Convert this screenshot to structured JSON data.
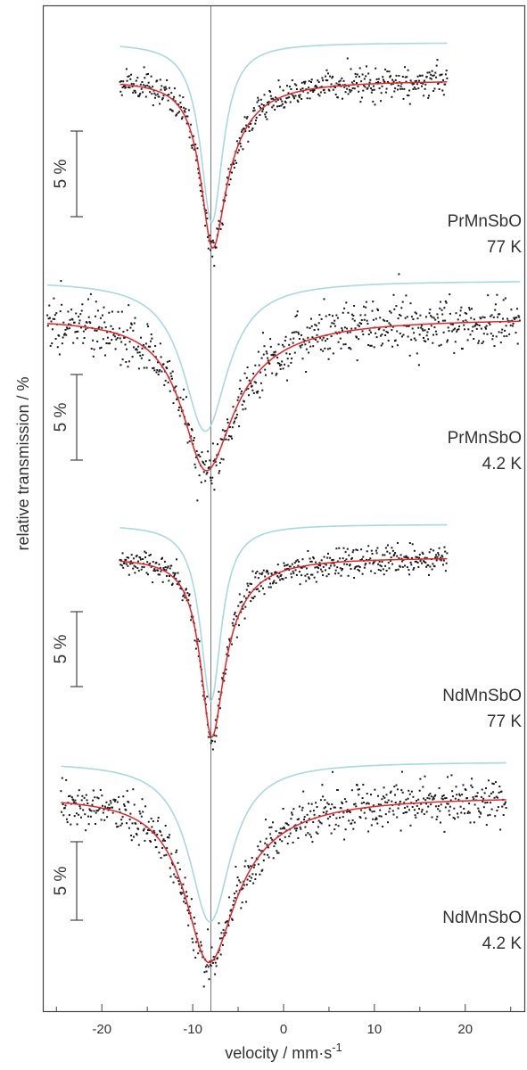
{
  "chart_data": {
    "type": "scatter",
    "xlabel": "velocity / mm·s",
    "xlabel_superscript": "-1",
    "ylabel": "relative transmission / %",
    "xlim": [
      -26.5,
      26.5
    ],
    "xticks": [
      -20,
      -10,
      0,
      10,
      20
    ],
    "xtick_labels": [
      "-20",
      "-10",
      "0",
      "10",
      "20"
    ],
    "reference_line_x": -8.0,
    "grid": false,
    "colors": {
      "data_points": "#1a1a1a",
      "fit": "#e8232a",
      "subspectrum": "#a9d8de",
      "frame": "#444444",
      "reference_line": "#777777"
    },
    "scale_bar_label": "5 %",
    "panels": [
      {
        "sample": "PrMnSbO",
        "temperature": "77 K",
        "x_range": [
          -18,
          18
        ],
        "fit": {
          "center": -7.8,
          "depth_percent": 9.8,
          "fwhm": 3.2,
          "asymmetry_tail": 0.35
        },
        "subspectrum": {
          "center": -7.9,
          "depth_percent": 10.5,
          "fwhm": 3.0,
          "offset_percent": 2.2
        },
        "noise_percent": 0.45
      },
      {
        "sample": "PrMnSbO",
        "temperature": "4.2 K",
        "x_range": [
          -26,
          26
        ],
        "fit": {
          "center": -8.5,
          "depth_percent": 8.9,
          "fwhm": 6.6,
          "asymmetry_tail": 0.25
        },
        "subspectrum": {
          "center": -8.6,
          "depth_percent": 8.8,
          "fwhm": 6.0,
          "offset_percent": 2.2
        },
        "noise_percent": 0.75
      },
      {
        "sample": "NdMnSbO",
        "temperature": "77 K",
        "x_range": [
          -18,
          18
        ],
        "fit": {
          "center": -7.9,
          "depth_percent": 12.0,
          "fwhm": 3.0,
          "asymmetry_tail": 0.3
        },
        "subspectrum": {
          "center": -8.0,
          "depth_percent": 11.8,
          "fwhm": 2.8,
          "offset_percent": 2.2
        },
        "noise_percent": 0.5
      },
      {
        "sample": "NdMnSbO",
        "temperature": "4.2 K",
        "x_range": [
          -24.5,
          24.5
        ],
        "fit": {
          "center": -8.2,
          "depth_percent": 10.6,
          "fwhm": 6.5,
          "asymmetry_tail": 0.25
        },
        "subspectrum": {
          "center": -8.1,
          "depth_percent": 10.2,
          "fwhm": 5.6,
          "offset_percent": 2.2
        },
        "noise_percent": 0.7
      }
    ]
  }
}
